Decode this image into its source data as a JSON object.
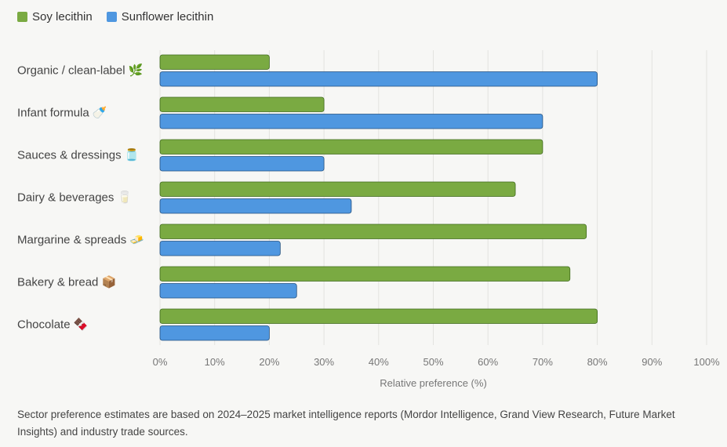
{
  "chart_data": {
    "type": "bar",
    "orientation": "horizontal",
    "categories": [
      "Organic / clean-label 🌿",
      "Infant formula 🍼",
      "Sauces & dressings 🫙",
      "Dairy & beverages 🥛",
      "Margarine & spreads 🧈",
      "Bakery & bread 📦",
      "Chocolate 🍫"
    ],
    "series": [
      {
        "name": "Soy lecithin",
        "color": "#7aaa42",
        "values": [
          20,
          30,
          70,
          65,
          78,
          75,
          80
        ]
      },
      {
        "name": "Sunflower lecithin",
        "color": "#4f97e0",
        "values": [
          80,
          70,
          30,
          35,
          22,
          25,
          20
        ]
      }
    ],
    "xlabel": "Relative preference (%)",
    "ylabel": "",
    "xlim": [
      0,
      100
    ],
    "xticks": [
      "0%",
      "10%",
      "20%",
      "30%",
      "40%",
      "50%",
      "60%",
      "70%",
      "80%",
      "90%",
      "100%"
    ],
    "grid": true,
    "legend_position": "top-left"
  },
  "footnote": "Sector preference estimates are based on 2024–2025 market intelligence reports (Mordor Intelligence, Grand View Research, Future Market Insights) and industry trade sources."
}
